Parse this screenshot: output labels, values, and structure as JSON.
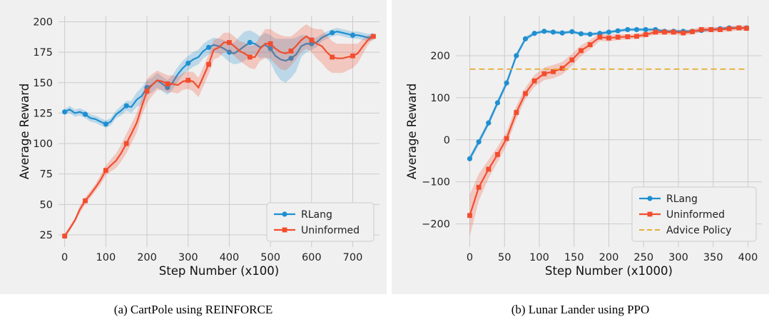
{
  "chart_data": [
    {
      "type": "line",
      "caption": "(a) CartPole using REINFORCE",
      "xlabel": "Step Number (x100)",
      "ylabel": "Average Reward",
      "xlim": [
        -15,
        765
      ],
      "ylim": [
        15,
        205
      ],
      "xticks": [
        0,
        100,
        200,
        300,
        400,
        500,
        600,
        700
      ],
      "yticks": [
        25,
        50,
        75,
        100,
        125,
        150,
        175,
        200
      ],
      "xtick_labels": [
        "0",
        "100",
        "200",
        "300",
        "400",
        "500",
        "600",
        "700"
      ],
      "ytick_labels": [
        "25",
        "50",
        "75",
        "100",
        "125",
        "150",
        "175",
        "200"
      ],
      "grid": true,
      "legend_position": "lower-right",
      "series": [
        {
          "name": "RLang",
          "color": "#1f8fd1",
          "marker": "circle",
          "marker_every": 4,
          "x": [
            0,
            12,
            25,
            37,
            50,
            62,
            75,
            87,
            100,
            112,
            125,
            137,
            150,
            162,
            175,
            187,
            200,
            212,
            225,
            237,
            250,
            262,
            275,
            287,
            300,
            312,
            325,
            337,
            350,
            362,
            375,
            387,
            400,
            412,
            425,
            437,
            450,
            462,
            475,
            487,
            500,
            512,
            525,
            537,
            550,
            562,
            575,
            587,
            600,
            612,
            625,
            637,
            650,
            662,
            675,
            687,
            700,
            712,
            725,
            737,
            750
          ],
          "y": [
            126,
            128,
            125,
            126,
            124,
            121,
            120,
            118,
            116,
            118,
            124,
            127,
            131,
            130,
            136,
            139,
            146,
            148,
            152,
            149,
            146,
            150,
            157,
            162,
            166,
            169,
            171,
            176,
            179,
            181,
            180,
            178,
            175,
            174,
            177,
            180,
            183,
            182,
            179,
            181,
            178,
            172,
            169,
            168,
            170,
            173,
            180,
            182,
            182,
            183,
            187,
            189,
            191,
            192,
            191,
            190,
            189,
            189,
            188,
            187,
            188
          ],
          "band": [
            2,
            3,
            3,
            3,
            3,
            3,
            3,
            3,
            3,
            3,
            3,
            4,
            4,
            5,
            6,
            7,
            6,
            6,
            6,
            6,
            6,
            6,
            6,
            6,
            6,
            6,
            6,
            6,
            6,
            6,
            6,
            7,
            8,
            9,
            11,
            12,
            10,
            9,
            9,
            10,
            11,
            14,
            17,
            18,
            16,
            14,
            9,
            7,
            5,
            4,
            3,
            3,
            3,
            3,
            3,
            3,
            3,
            3,
            3,
            3,
            3
          ]
        },
        {
          "name": "Uninformed",
          "color": "#f24d2e",
          "marker": "square",
          "marker_every": 4,
          "x": [
            0,
            12,
            25,
            37,
            50,
            62,
            75,
            87,
            100,
            112,
            125,
            137,
            150,
            162,
            175,
            187,
            200,
            212,
            225,
            237,
            250,
            262,
            275,
            287,
            300,
            312,
            325,
            337,
            350,
            362,
            375,
            387,
            400,
            412,
            425,
            437,
            450,
            462,
            475,
            487,
            500,
            512,
            525,
            537,
            550,
            562,
            575,
            587,
            600,
            612,
            625,
            637,
            650,
            662,
            675,
            687,
            700,
            712,
            725,
            737,
            750
          ],
          "y": [
            24,
            30,
            37,
            46,
            53,
            58,
            64,
            70,
            78,
            82,
            86,
            92,
            100,
            108,
            117,
            130,
            143,
            148,
            152,
            151,
            149,
            149,
            148,
            151,
            152,
            151,
            146,
            155,
            165,
            177,
            179,
            183,
            183,
            180,
            176,
            174,
            171,
            171,
            178,
            182,
            182,
            178,
            175,
            174,
            176,
            180,
            185,
            188,
            185,
            182,
            180,
            175,
            171,
            170,
            170,
            171,
            172,
            174,
            180,
            185,
            188
          ],
          "band": [
            2,
            2,
            2,
            3,
            3,
            3,
            3,
            4,
            4,
            5,
            6,
            7,
            8,
            8,
            8,
            7,
            10,
            9,
            8,
            7,
            7,
            7,
            7,
            7,
            7,
            8,
            8,
            8,
            8,
            8,
            8,
            8,
            8,
            8,
            8,
            9,
            9,
            10,
            10,
            12,
            12,
            13,
            14,
            14,
            12,
            11,
            10,
            10,
            10,
            12,
            14,
            14,
            13,
            12,
            12,
            11,
            10,
            8,
            6,
            4,
            2
          ]
        }
      ]
    },
    {
      "type": "line",
      "caption": "(b) Lunar Lander using PPO",
      "xlabel": "Step Number (x1000)",
      "ylabel": "Average Reward",
      "xlim": [
        -20,
        420
      ],
      "ylim": [
        -255,
        295
      ],
      "xticks": [
        0,
        50,
        100,
        150,
        200,
        250,
        300,
        350,
        400
      ],
      "yticks": [
        -200,
        -100,
        0,
        100,
        200
      ],
      "xtick_labels": [
        "0",
        "50",
        "100",
        "150",
        "200",
        "250",
        "300",
        "350",
        "400"
      ],
      "ytick_labels": [
        "−200",
        "−100",
        "0",
        "100",
        "200"
      ],
      "grid": true,
      "legend_position": "lower-right",
      "series": [
        {
          "name": "RLang",
          "color": "#1f8fd1",
          "marker": "circle",
          "marker_every": 1,
          "x": [
            0,
            13,
            27,
            40,
            53,
            67,
            80,
            93,
            107,
            120,
            133,
            147,
            160,
            173,
            187,
            200,
            213,
            227,
            240,
            253,
            267,
            280,
            293,
            307,
            320,
            333,
            347,
            360,
            373,
            387,
            398
          ],
          "y": [
            -45,
            -5,
            40,
            88,
            135,
            200,
            240,
            253,
            258,
            256,
            254,
            257,
            252,
            251,
            253,
            256,
            259,
            262,
            262,
            262,
            262,
            258,
            258,
            258,
            258,
            260,
            262,
            264,
            266,
            266,
            266
          ],
          "band": [
            8,
            8,
            8,
            8,
            8,
            7,
            6,
            4,
            4,
            4,
            4,
            4,
            4,
            4,
            4,
            4,
            4,
            4,
            4,
            4,
            4,
            4,
            4,
            4,
            4,
            4,
            4,
            4,
            4,
            4,
            4
          ]
        },
        {
          "name": "Uninformed",
          "color": "#f24d2e",
          "marker": "square",
          "marker_every": 1,
          "x": [
            0,
            13,
            27,
            40,
            53,
            67,
            80,
            93,
            107,
            120,
            133,
            147,
            160,
            173,
            187,
            200,
            213,
            227,
            240,
            253,
            267,
            280,
            293,
            307,
            320,
            333,
            347,
            360,
            373,
            387,
            398
          ],
          "y": [
            -180,
            -113,
            -70,
            -35,
            3,
            65,
            110,
            140,
            157,
            162,
            170,
            190,
            212,
            226,
            244,
            242,
            244,
            245,
            246,
            250,
            256,
            256,
            256,
            254,
            257,
            262,
            262,
            262,
            264,
            266,
            265
          ],
          "band": [
            50,
            32,
            22,
            18,
            16,
            16,
            14,
            14,
            15,
            16,
            15,
            14,
            13,
            11,
            9,
            8,
            7,
            6,
            6,
            6,
            6,
            6,
            6,
            6,
            6,
            6,
            6,
            6,
            6,
            6,
            6
          ]
        },
        {
          "name": "Advice Policy",
          "color": "#e5ae38",
          "style": "dashed",
          "y_constant": 168
        }
      ]
    }
  ]
}
